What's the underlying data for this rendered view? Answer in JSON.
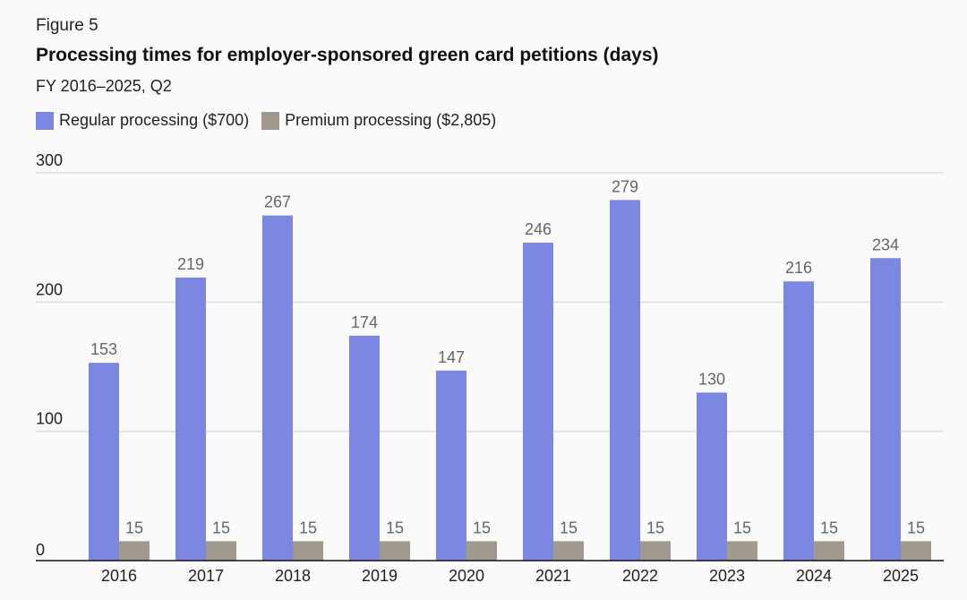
{
  "figure_label": "Figure 5",
  "chart_data": {
    "type": "bar",
    "title": "Processing times for employer-sponsored green card petitions (days)",
    "subtitle": "FY 2016–2025, Q2",
    "xlabel": "",
    "ylabel": "",
    "ylim": [
      0,
      300
    ],
    "yticks": [
      0,
      100,
      200,
      300
    ],
    "grid": true,
    "legend_position": "top-left",
    "categories": [
      "2016",
      "2017",
      "2018",
      "2019",
      "2020",
      "2021",
      "2022",
      "2023",
      "2024",
      "2025"
    ],
    "series": [
      {
        "name": "Regular processing ($700)",
        "color": "#7b87e0",
        "values": [
          153,
          219,
          267,
          174,
          147,
          246,
          279,
          130,
          216,
          234
        ]
      },
      {
        "name": "Premium processing ($2,805)",
        "color": "#a09a8e",
        "values": [
          15,
          15,
          15,
          15,
          15,
          15,
          15,
          15,
          15,
          15
        ]
      }
    ]
  }
}
